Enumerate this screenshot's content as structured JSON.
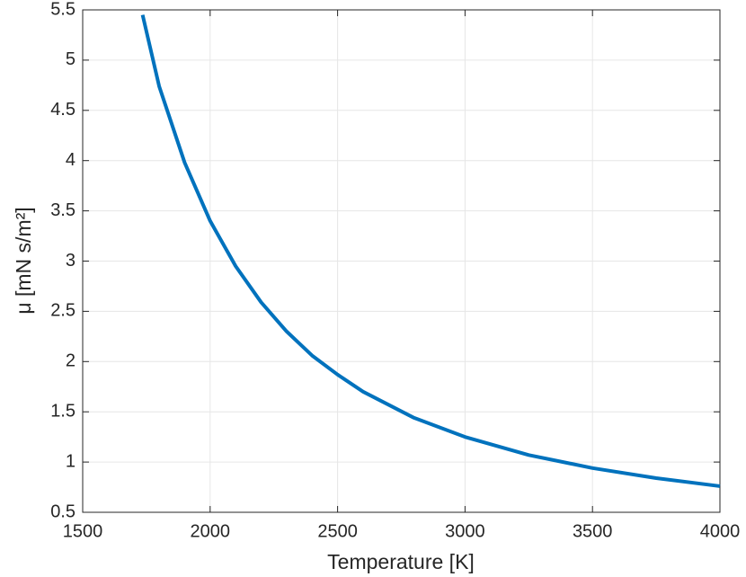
{
  "chart_data": {
    "type": "line",
    "xlabel": "Temperature [K]",
    "ylabel": "μ [mN s/m²]",
    "x": [
      1735,
      1800,
      1900,
      2000,
      2100,
      2200,
      2300,
      2400,
      2500,
      2600,
      2800,
      3000,
      3250,
      3500,
      3750,
      4000
    ],
    "series": [
      {
        "color": "#0072bd",
        "values": [
          5.45,
          4.74,
          3.98,
          3.4,
          2.95,
          2.59,
          2.3,
          2.06,
          1.87,
          1.7,
          1.44,
          1.25,
          1.07,
          0.94,
          0.84,
          0.76
        ]
      }
    ],
    "xlim": [
      1500,
      4000
    ],
    "xticks": [
      1500,
      2000,
      2500,
      3000,
      3500,
      4000
    ],
    "ylim": [
      0.5,
      5.5
    ],
    "yticks": [
      0.5,
      1,
      1.5,
      2,
      2.5,
      3,
      3.5,
      4,
      4.5,
      5,
      5.5
    ],
    "grid": true
  }
}
